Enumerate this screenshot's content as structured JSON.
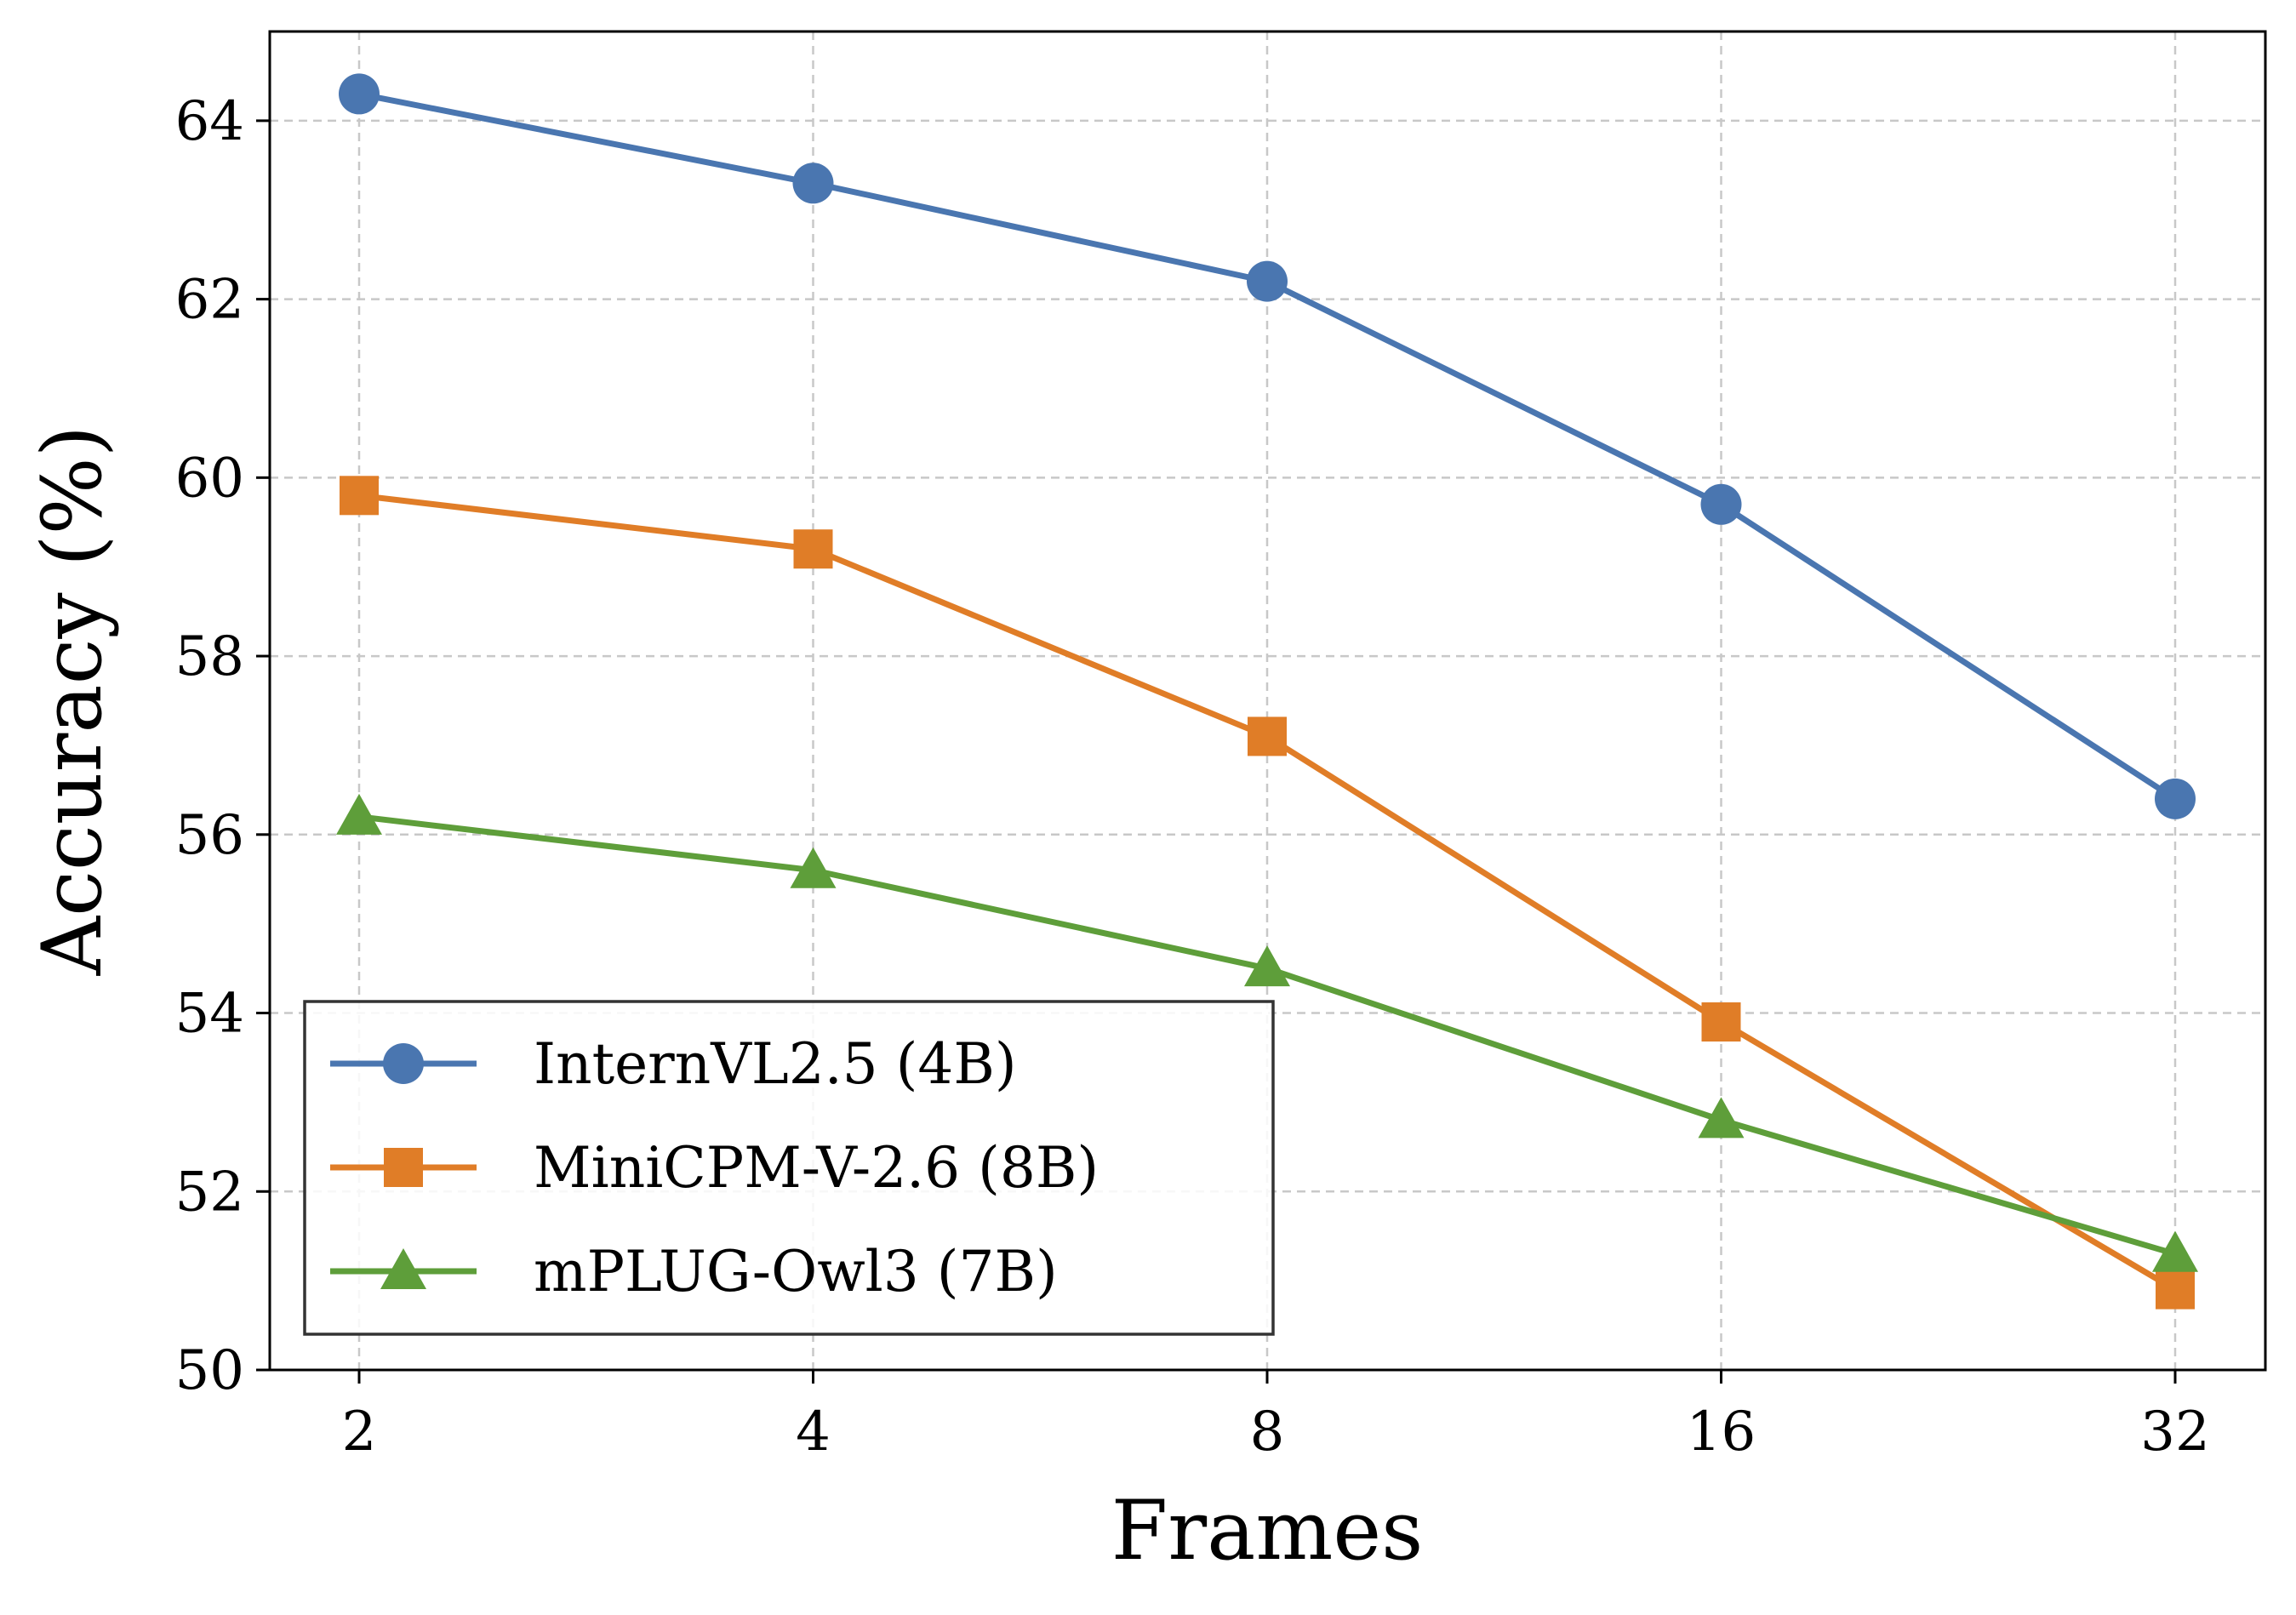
{
  "chart_data": {
    "type": "line",
    "x": [
      2,
      4,
      8,
      16,
      32
    ],
    "x_tick_labels": [
      "2",
      "4",
      "8",
      "16",
      "32"
    ],
    "xlabel": "Frames",
    "ylabel": "Accuracy (%)",
    "ylim": [
      50,
      65
    ],
    "y_ticks": [
      50,
      52,
      54,
      56,
      58,
      60,
      62,
      64
    ],
    "x_scale": "log2",
    "grid": true,
    "legend_position": "lower-left",
    "series": [
      {
        "name": "InternVL2.5 (4B)",
        "values": [
          64.3,
          63.3,
          62.2,
          59.7,
          56.4
        ],
        "color": "#4a76b0",
        "marker": "circle"
      },
      {
        "name": "MiniCPM-V-2.6 (8B)",
        "values": [
          59.8,
          59.2,
          57.1,
          53.9,
          50.9
        ],
        "color": "#e07d27",
        "marker": "square"
      },
      {
        "name": "mPLUG-Owl3 (7B)",
        "values": [
          56.2,
          55.6,
          54.5,
          52.8,
          51.3
        ],
        "color": "#5e9e3a",
        "marker": "triangle"
      }
    ]
  }
}
